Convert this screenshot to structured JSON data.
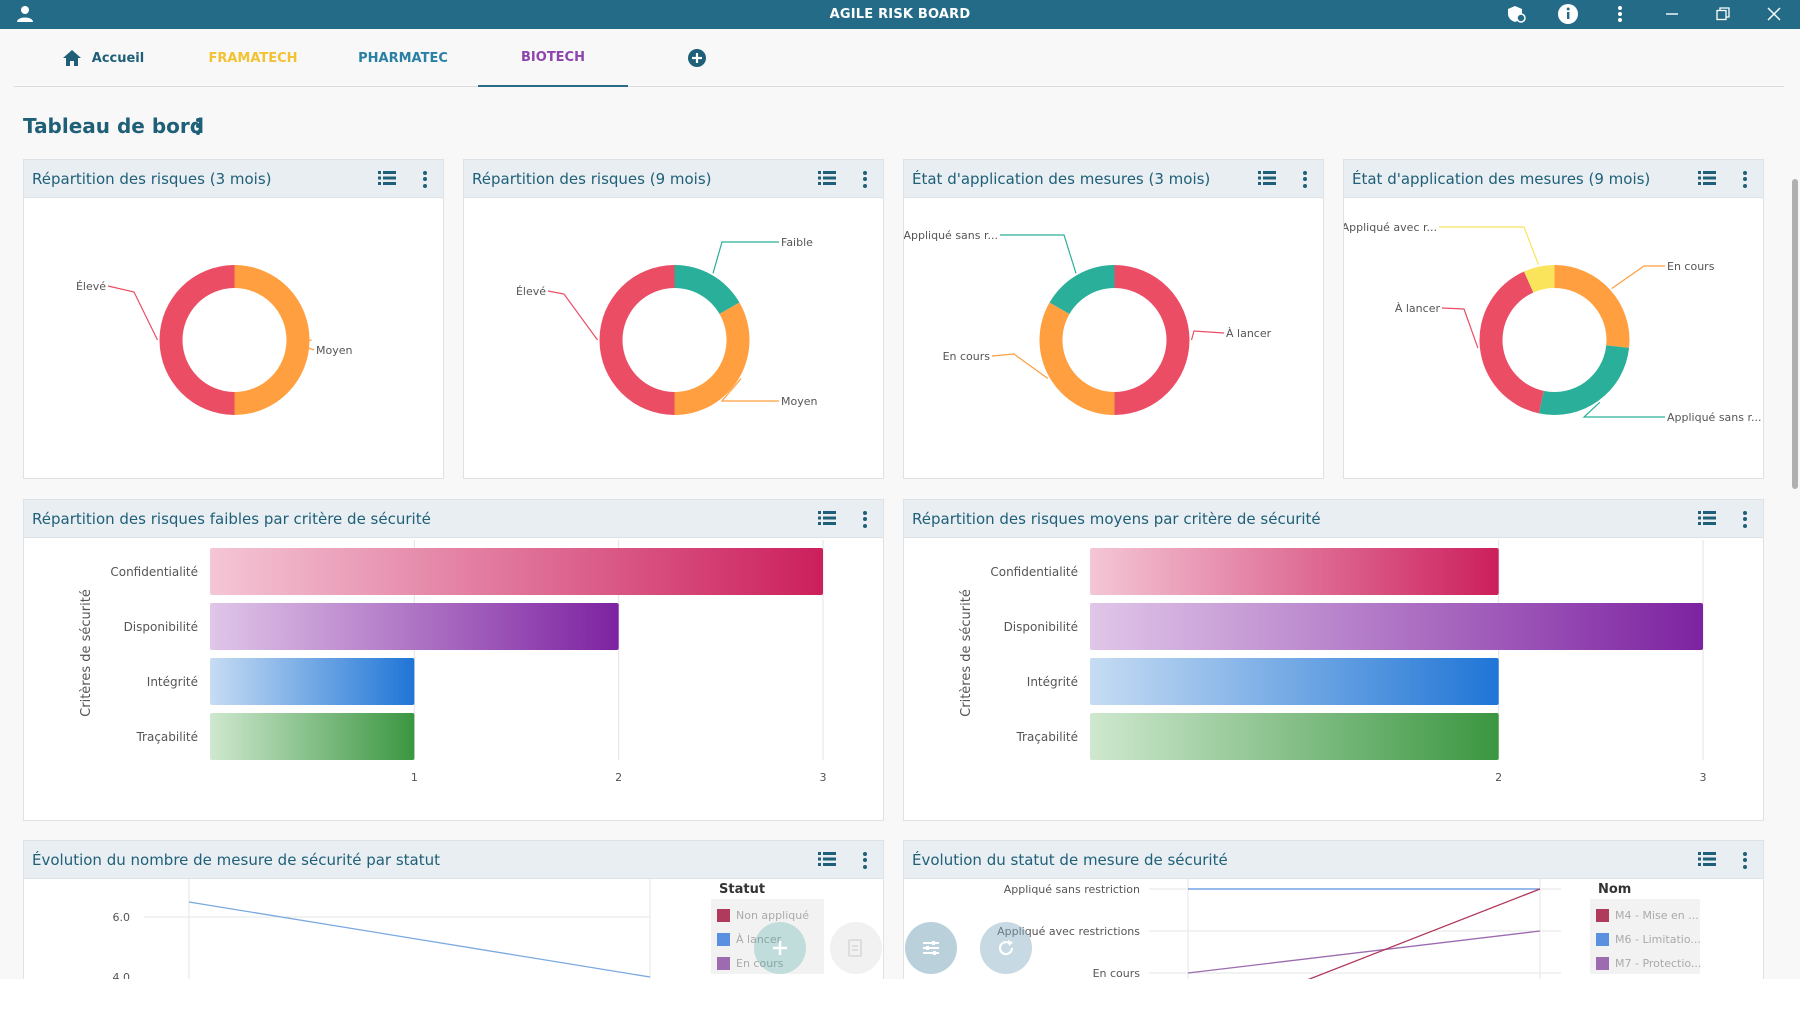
{
  "titlebar": {
    "title": "AGILE RISK BOARD",
    "icons": [
      "user-icon",
      "shield-icon",
      "info-icon",
      "more-vertical-icon",
      "minimize-icon",
      "restore-icon",
      "close-icon"
    ]
  },
  "tabs": [
    {
      "label": "Accueil",
      "color": "#1f5f78",
      "icon": "home-icon"
    },
    {
      "label": "FRAMATECH",
      "color": "#f2c233"
    },
    {
      "label": "PHARMATEC",
      "color": "#2a7fa4"
    },
    {
      "label": "BIOTECH",
      "color": "#8e44ad",
      "active": true
    }
  ],
  "page": {
    "title": "Tableau de bord"
  },
  "cards": {
    "risk3": {
      "title": "Répartition des risques (3 mois)"
    },
    "risk9": {
      "title": "Répartition des risques (9 mois)"
    },
    "mes3": {
      "title": "État d'application des mesures (3 mois)"
    },
    "mes9": {
      "title": "État d'application des mesures (9 mois)"
    },
    "faibles": {
      "title": "Répartition des risques faibles par critère de sécurité"
    },
    "moyens": {
      "title": "Répartition des risques moyens par critère de sécurité"
    },
    "evol": {
      "title": "Évolution du nombre de mesure de sécurité par statut"
    },
    "statut": {
      "title": "Évolution du statut de mesure de sécurité"
    }
  },
  "chart_data": [
    {
      "id": "risk3",
      "type": "pie",
      "slices": [
        {
          "label": "Moyen",
          "value": 1,
          "color": "#ff9f40"
        },
        {
          "label": "Élevé",
          "value": 1,
          "color": "#eb4d64"
        }
      ]
    },
    {
      "id": "risk9",
      "type": "pie",
      "slices": [
        {
          "label": "Faible",
          "value": 1,
          "color": "#2ab09a"
        },
        {
          "label": "Moyen",
          "value": 2,
          "color": "#ff9f40"
        },
        {
          "label": "Élevé",
          "value": 3,
          "color": "#eb4d64"
        }
      ]
    },
    {
      "id": "mes3",
      "type": "pie",
      "slices": [
        {
          "label": "À lancer",
          "value": 3,
          "color": "#eb4d64"
        },
        {
          "label": "En cours",
          "value": 2,
          "color": "#ff9f40"
        },
        {
          "label": "Appliqué sans r...",
          "value": 1,
          "color": "#2ab09a"
        }
      ]
    },
    {
      "id": "mes9",
      "type": "pie",
      "slices": [
        {
          "label": "En cours",
          "value": 2,
          "color": "#ff9f40"
        },
        {
          "label": "Appliqué sans r...",
          "value": 2,
          "color": "#2ab09a"
        },
        {
          "label": "À lancer",
          "value": 3,
          "color": "#eb4d64"
        },
        {
          "label": "Appliqué avec r...",
          "value": 0.5,
          "color": "#f9e45b"
        }
      ]
    },
    {
      "id": "faibles",
      "type": "bar",
      "orientation": "horizontal",
      "ylabel": "Critères de sécurité",
      "categories": [
        "Confidentialité",
        "Disponibilité",
        "Intégrité",
        "Traçabilité"
      ],
      "values": [
        3,
        2,
        1,
        1
      ],
      "colors": [
        [
          "#f4c6d6",
          "#cc1f5c"
        ],
        [
          "#e0c6e8",
          "#7d22a1"
        ],
        [
          "#c6dcf3",
          "#1f75d6"
        ],
        [
          "#cfe8cf",
          "#3a9640"
        ]
      ],
      "xticks": [
        1,
        2,
        3
      ],
      "xlim": [
        0,
        3
      ]
    },
    {
      "id": "moyens",
      "type": "bar",
      "orientation": "horizontal",
      "ylabel": "Critères de sécurité",
      "categories": [
        "Confidentialité",
        "Disponibilité",
        "Intégrité",
        "Traçabilité"
      ],
      "values": [
        2,
        3,
        2,
        2
      ],
      "colors": [
        [
          "#f4c6d6",
          "#cc1f5c"
        ],
        [
          "#e0c6e8",
          "#7d22a1"
        ],
        [
          "#c6dcf3",
          "#1f75d6"
        ],
        [
          "#cfe8cf",
          "#3a9640"
        ]
      ],
      "xticks": [
        2,
        3
      ],
      "xlim": [
        0,
        3
      ]
    },
    {
      "id": "evol",
      "type": "line",
      "yticks": [
        "6.0",
        "4.0"
      ],
      "legend_title": "Statut",
      "legend": [
        {
          "label": "Non appliqué",
          "color": "#b03a5b"
        },
        {
          "label": "À lancer",
          "color": "#5b8fe0"
        },
        {
          "label": "En cours",
          "color": "#9c6bb0"
        }
      ],
      "series": [
        {
          "values": [
            6.5,
            4.0
          ],
          "color": "#7aa9e0"
        }
      ]
    },
    {
      "id": "statut",
      "type": "line",
      "yticks": [
        "Appliqué sans restriction",
        "Appliqué avec restrictions",
        "En cours"
      ],
      "legend_title": "Nom",
      "legend": [
        {
          "label": "M4 - Mise en ...",
          "color": "#b03a5b"
        },
        {
          "label": "M6 - Limitatio...",
          "color": "#5b8fe0"
        },
        {
          "label": "M7 - Protectio...",
          "color": "#9c6bb0"
        }
      ]
    }
  ],
  "fabs": [
    {
      "icon": "plus-icon"
    },
    {
      "icon": "document-icon"
    },
    {
      "icon": "sliders-icon"
    },
    {
      "icon": "refresh-icon"
    }
  ]
}
